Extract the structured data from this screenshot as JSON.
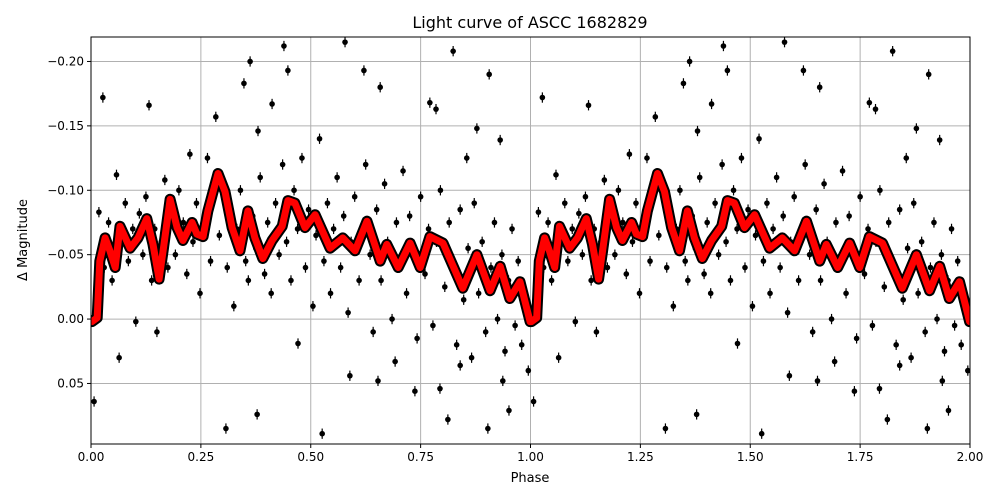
{
  "chart_data": {
    "type": "scatter",
    "title": "Light curve of ASCC 1682829",
    "xlabel": "Phase",
    "ylabel": "Δ Magnitude",
    "xlim": [
      0,
      2
    ],
    "ylim": [
      0.097,
      -0.219
    ],
    "y_inverted": true,
    "grid": true,
    "x_ticks": [
      "0.00",
      "0.25",
      "0.50",
      "0.75",
      "1.00",
      "1.25",
      "1.50",
      "1.75",
      "2.00"
    ],
    "x_tick_values": [
      0,
      0.25,
      0.5,
      0.75,
      1,
      1.25,
      1.5,
      1.75,
      2
    ],
    "y_ticks": [
      "−0.20",
      "−0.15",
      "−0.10",
      "−0.05",
      "0.00",
      "0.05"
    ],
    "y_tick_values": [
      -0.2,
      -0.15,
      -0.1,
      -0.05,
      0,
      0.05
    ],
    "period_repeat": [
      0,
      1
    ],
    "points": {
      "color": "#000000",
      "typical_error": 0.004,
      "phase_mag": [
        [
          0.007,
          0.064
        ],
        [
          0.027,
          -0.172
        ],
        [
          0.132,
          -0.166
        ],
        [
          0.064,
          0.03
        ],
        [
          0.284,
          -0.157
        ],
        [
          0.307,
          0.085
        ],
        [
          0.348,
          -0.183
        ],
        [
          0.362,
          -0.2
        ],
        [
          0.38,
          -0.146
        ],
        [
          0.378,
          0.074
        ],
        [
          0.412,
          -0.167
        ],
        [
          0.439,
          -0.212
        ],
        [
          0.448,
          -0.193
        ],
        [
          0.471,
          0.019
        ],
        [
          0.526,
          0.089
        ],
        [
          0.578,
          -0.215
        ],
        [
          0.621,
          -0.193
        ],
        [
          0.658,
          -0.18
        ],
        [
          0.653,
          0.048
        ],
        [
          0.737,
          0.056
        ],
        [
          0.771,
          -0.168
        ],
        [
          0.785,
          -0.163
        ],
        [
          0.794,
          0.054
        ],
        [
          0.812,
          0.078
        ],
        [
          0.824,
          -0.208
        ],
        [
          0.855,
          -0.125
        ],
        [
          0.878,
          -0.148
        ],
        [
          0.906,
          -0.19
        ],
        [
          0.903,
          0.085
        ],
        [
          0.931,
          -0.139
        ],
        [
          0.951,
          0.071
        ],
        [
          0.692,
          0.033
        ],
        [
          0.589,
          0.044
        ],
        [
          0.84,
          0.036
        ],
        [
          0.937,
          0.048
        ],
        [
          0.012,
          -0.02
        ],
        [
          0.018,
          -0.083
        ],
        [
          0.03,
          -0.04
        ],
        [
          0.04,
          -0.075
        ],
        [
          0.048,
          -0.03
        ],
        [
          0.058,
          -0.112
        ],
        [
          0.07,
          -0.06
        ],
        [
          0.078,
          -0.09
        ],
        [
          0.085,
          -0.045
        ],
        [
          0.095,
          -0.07
        ],
        [
          0.102,
          0.002
        ],
        [
          0.11,
          -0.082
        ],
        [
          0.118,
          -0.05
        ],
        [
          0.125,
          -0.095
        ],
        [
          0.138,
          -0.03
        ],
        [
          0.145,
          -0.07
        ],
        [
          0.15,
          0.01
        ],
        [
          0.16,
          -0.06
        ],
        [
          0.168,
          -0.108
        ],
        [
          0.175,
          -0.04
        ],
        [
          0.185,
          -0.085
        ],
        [
          0.192,
          -0.05
        ],
        [
          0.2,
          -0.1
        ],
        [
          0.21,
          -0.075
        ],
        [
          0.218,
          -0.035
        ],
        [
          0.225,
          -0.128
        ],
        [
          0.232,
          -0.06
        ],
        [
          0.24,
          -0.09
        ],
        [
          0.248,
          -0.02
        ],
        [
          0.258,
          -0.07
        ],
        [
          0.265,
          -0.125
        ],
        [
          0.272,
          -0.045
        ],
        [
          0.28,
          -0.095
        ],
        [
          0.292,
          -0.065
        ],
        [
          0.298,
          -0.105
        ],
        [
          0.31,
          -0.04
        ],
        [
          0.318,
          -0.085
        ],
        [
          0.325,
          -0.01
        ],
        [
          0.332,
          -0.07
        ],
        [
          0.34,
          -0.1
        ],
        [
          0.352,
          -0.045
        ],
        [
          0.358,
          -0.03
        ],
        [
          0.368,
          -0.08
        ],
        [
          0.375,
          -0.055
        ],
        [
          0.385,
          -0.11
        ],
        [
          0.395,
          -0.035
        ],
        [
          0.402,
          -0.075
        ],
        [
          0.41,
          -0.02
        ],
        [
          0.42,
          -0.09
        ],
        [
          0.428,
          -0.05
        ],
        [
          0.436,
          -0.12
        ],
        [
          0.445,
          -0.06
        ],
        [
          0.455,
          -0.03
        ],
        [
          0.462,
          -0.1
        ],
        [
          0.47,
          -0.07
        ],
        [
          0.48,
          -0.125
        ],
        [
          0.488,
          -0.04
        ],
        [
          0.495,
          -0.085
        ],
        [
          0.505,
          -0.01
        ],
        [
          0.512,
          -0.065
        ],
        [
          0.52,
          -0.14
        ],
        [
          0.53,
          -0.045
        ],
        [
          0.538,
          -0.09
        ],
        [
          0.545,
          -0.02
        ],
        [
          0.552,
          -0.07
        ],
        [
          0.56,
          -0.11
        ],
        [
          0.568,
          -0.04
        ],
        [
          0.575,
          -0.08
        ],
        [
          0.585,
          -0.005
        ],
        [
          0.592,
          -0.06
        ],
        [
          0.6,
          -0.095
        ],
        [
          0.61,
          -0.03
        ],
        [
          0.618,
          -0.07
        ],
        [
          0.625,
          -0.12
        ],
        [
          0.635,
          -0.05
        ],
        [
          0.642,
          0.01
        ],
        [
          0.65,
          -0.085
        ],
        [
          0.66,
          -0.03
        ],
        [
          0.668,
          -0.105
        ],
        [
          0.675,
          -0.06
        ],
        [
          0.685,
          0.0
        ],
        [
          0.695,
          -0.075
        ],
        [
          0.702,
          -0.04
        ],
        [
          0.71,
          -0.115
        ],
        [
          0.718,
          -0.02
        ],
        [
          0.725,
          -0.08
        ],
        [
          0.735,
          -0.05
        ],
        [
          0.742,
          0.015
        ],
        [
          0.75,
          -0.095
        ],
        [
          0.76,
          -0.035
        ],
        [
          0.768,
          -0.07
        ],
        [
          0.778,
          0.005
        ],
        [
          0.786,
          -0.06
        ],
        [
          0.795,
          -0.1
        ],
        [
          0.805,
          -0.025
        ],
        [
          0.815,
          -0.075
        ],
        [
          0.822,
          -0.04
        ],
        [
          0.832,
          0.02
        ],
        [
          0.84,
          -0.085
        ],
        [
          0.848,
          -0.015
        ],
        [
          0.858,
          -0.055
        ],
        [
          0.866,
          0.03
        ],
        [
          0.872,
          -0.09
        ],
        [
          0.882,
          -0.02
        ],
        [
          0.89,
          -0.06
        ],
        [
          0.898,
          0.01
        ],
        [
          0.91,
          -0.04
        ],
        [
          0.918,
          -0.075
        ],
        [
          0.925,
          0.0
        ],
        [
          0.935,
          -0.05
        ],
        [
          0.942,
          0.025
        ],
        [
          0.95,
          -0.03
        ],
        [
          0.958,
          -0.07
        ],
        [
          0.965,
          0.005
        ],
        [
          0.972,
          -0.045
        ],
        [
          0.98,
          0.02
        ],
        [
          0.988,
          -0.015
        ],
        [
          0.995,
          0.04
        ]
      ]
    },
    "model_curve": {
      "color": "#ff0000",
      "edge_color": "#000000",
      "phase": [
        0.002,
        0.014,
        0.02,
        0.032,
        0.043,
        0.055,
        0.066,
        0.089,
        0.107,
        0.127,
        0.141,
        0.155,
        0.164,
        0.18,
        0.196,
        0.209,
        0.23,
        0.241,
        0.255,
        0.266,
        0.289,
        0.305,
        0.321,
        0.339,
        0.357,
        0.373,
        0.391,
        0.412,
        0.435,
        0.448,
        0.464,
        0.487,
        0.51,
        0.544,
        0.573,
        0.601,
        0.628,
        0.658,
        0.673,
        0.699,
        0.726,
        0.749,
        0.771,
        0.801,
        0.846,
        0.878,
        0.908,
        0.931,
        0.953,
        0.976,
        0.999
      ],
      "mag": [
        0.002,
        -0.001,
        -0.045,
        -0.063,
        -0.053,
        -0.04,
        -0.072,
        -0.055,
        -0.063,
        -0.078,
        -0.058,
        -0.031,
        -0.053,
        -0.093,
        -0.071,
        -0.061,
        -0.075,
        -0.066,
        -0.064,
        -0.084,
        -0.113,
        -0.099,
        -0.071,
        -0.053,
        -0.084,
        -0.063,
        -0.047,
        -0.061,
        -0.072,
        -0.092,
        -0.09,
        -0.071,
        -0.081,
        -0.055,
        -0.063,
        -0.053,
        -0.076,
        -0.045,
        -0.058,
        -0.04,
        -0.059,
        -0.04,
        -0.064,
        -0.059,
        -0.024,
        -0.05,
        -0.022,
        -0.041,
        -0.016,
        -0.029,
        0.002
      ]
    }
  }
}
